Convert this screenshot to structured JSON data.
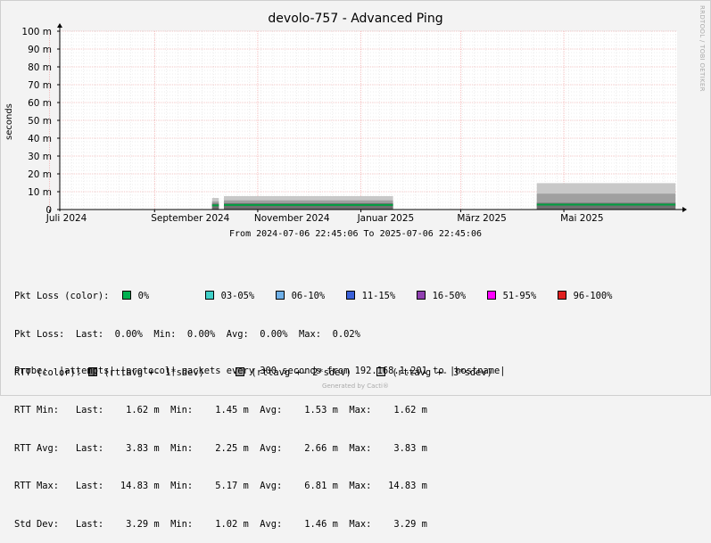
{
  "chart_data": {
    "type": "area",
    "title": "devolo-757 - Advanced Ping",
    "ylabel": "seconds",
    "ylim": [
      0,
      0.1
    ],
    "y_ticks": [
      0,
      0.01,
      0.02,
      0.03,
      0.04,
      0.05,
      0.06,
      0.07,
      0.08,
      0.09,
      0.1
    ],
    "y_tick_labels": [
      "0",
      "10 m",
      "20 m",
      "30 m",
      "40 m",
      "50 m",
      "60 m",
      "70 m",
      "80 m",
      "90 m",
      "100 m"
    ],
    "x_range": [
      "2024-07-06 22:45:06",
      "2025-07-06 22:45:06"
    ],
    "x_ticks": [
      {
        "label": "Juli 2024",
        "date": "2024-07-01"
      },
      {
        "label": "September 2024",
        "date": "2024-09-01"
      },
      {
        "label": "November 2024",
        "date": "2024-11-01"
      },
      {
        "label": "Januar 2025",
        "date": "2025-01-01"
      },
      {
        "label": "März 2025",
        "date": "2025-03-01"
      },
      {
        "label": "Mai 2025",
        "date": "2025-05-01"
      }
    ],
    "grid": true,
    "data_segments": [
      {
        "from": "2024-10-05",
        "to": "2024-10-09",
        "rtt_avg": 0.0026,
        "rtt_max": 0.0065
      },
      {
        "from": "2024-10-12",
        "to": "2025-01-20",
        "rtt_avg": 0.0028,
        "rtt_max": 0.0075
      },
      {
        "from": "2025-04-15",
        "to": "2025-07-06",
        "rtt_avg": 0.003,
        "rtt_max": 0.0148
      }
    ],
    "series": [
      {
        "name": "RTT Min",
        "last": "1.62 m",
        "min": "1.45 m",
        "avg": "1.53 m",
        "max": "1.62 m"
      },
      {
        "name": "RTT Avg",
        "last": "3.83 m",
        "min": "2.25 m",
        "avg": "2.66 m",
        "max": "3.83 m"
      },
      {
        "name": "RTT Max",
        "last": "14.83 m",
        "min": "5.17 m",
        "avg": "6.81 m",
        "max": "14.83 m"
      }
    ]
  },
  "range_text": "From 2024-07-06 22:45:06 To 2025-07-06 22:45:06",
  "watermark": "RRDTOOL / TOBI OETIKER",
  "footer": "Generated by Cacti®",
  "legend": {
    "pkt_loss_color_label": "Pkt Loss (color):",
    "loss_items": [
      {
        "label": "0%",
        "color": "#00b050"
      },
      {
        "label": "03-05%",
        "color": "#40d0c8"
      },
      {
        "label": "06-10%",
        "color": "#6fb0e8"
      },
      {
        "label": "11-15%",
        "color": "#3a60d8"
      },
      {
        "label": "16-50%",
        "color": "#9040b0"
      },
      {
        "label": "51-95%",
        "color": "#ff00ff"
      },
      {
        "label": "96-100%",
        "color": "#e02020"
      }
    ],
    "pkt_loss_line": "Pkt Loss:  Last:  0.00%  Min:  0.00%  Avg:  0.00%  Max:  0.02%",
    "rtt_color_label": "RTT (color):",
    "rtt_items": [
      {
        "label": "(rttavg +- 1*sdev)",
        "color": "#707070"
      },
      {
        "label": "(rttavg +- 2*sdev)",
        "color": "#a0a0a0"
      },
      {
        "label": "(rttavg +- 3*sdev)",
        "color": "#c8c8c8"
      }
    ],
    "stat_lines": [
      "RTT Min:   Last:    1.62 m  Min:    1.45 m  Avg:    1.53 m  Max:    1.62 m",
      "RTT Avg:   Last:    3.83 m  Min:    2.25 m  Avg:    2.66 m  Max:    3.83 m",
      "RTT Max:   Last:   14.83 m  Min:    5.17 m  Avg:    6.81 m  Max:   14.83 m",
      "Std Dev:   Last:    3.29 m  Min:    1.02 m  Avg:    1.46 m  Max:    3.29 m"
    ],
    "probe_line": "Probe:  |attempts| |protocol| packets every 300 seconds from 192.168.1.201 to |hostname|"
  },
  "colors": {
    "background": "#f3f3f3",
    "plot_background": "#ffffff",
    "major_grid": "#f29a9a",
    "minor_grid": "#dcdcdc",
    "rtt_line": "#00a040"
  }
}
